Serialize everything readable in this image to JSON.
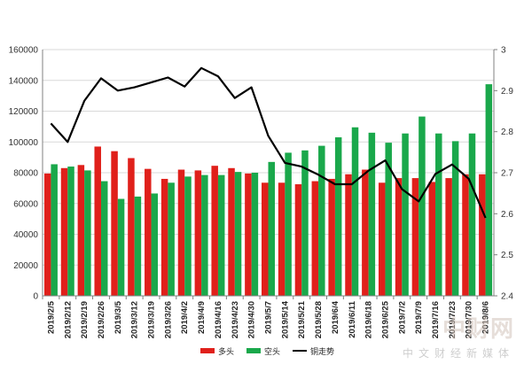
{
  "chart_data": {
    "type": "bar",
    "categories": [
      "2019/2/5",
      "2019/2/12",
      "2019/2/19",
      "2019/2/26",
      "2019/3/5",
      "2019/3/12",
      "2019/3/19",
      "2019/3/26",
      "2019/4/2",
      "2019/4/9",
      "2019/4/16",
      "2019/4/23",
      "2019/4/30",
      "2019/5/7",
      "2019/5/14",
      "2019/5/21",
      "2019/5/28",
      "2019/6/4",
      "2019/6/11",
      "2019/6/18",
      "2019/6/25",
      "2019/7/2",
      "2019/7/9",
      "2019/7/16",
      "2019/7/23",
      "2019/7/30",
      "2019/8/6"
    ],
    "series": [
      {
        "name": "多头",
        "kind": "bar",
        "axis": "left",
        "color": "#e0201b",
        "values": [
          79500,
          83000,
          85000,
          97000,
          94000,
          89500,
          82500,
          76000,
          82000,
          81500,
          84500,
          83000,
          79500,
          73500,
          73500,
          72500,
          74500,
          76000,
          79000,
          82000,
          73500,
          76500,
          76500,
          74000,
          76500,
          79000,
          79000
        ]
      },
      {
        "name": "空头",
        "kind": "bar",
        "axis": "left",
        "color": "#1aa84b",
        "values": [
          85500,
          84000,
          81500,
          74500,
          63000,
          64500,
          66500,
          73500,
          77500,
          78500,
          78500,
          80500,
          80000,
          87000,
          93000,
          94500,
          97500,
          103000,
          109500,
          106000,
          99500,
          105500,
          116500,
          105500,
          100500,
          105500,
          137500
        ]
      },
      {
        "name": "铜走势",
        "kind": "line",
        "axis": "right",
        "color": "#000000",
        "values": [
          2.82,
          2.775,
          2.875,
          2.93,
          2.9,
          2.908,
          2.92,
          2.932,
          2.91,
          2.955,
          2.935,
          2.882,
          2.908,
          2.79,
          2.724,
          2.715,
          2.695,
          2.672,
          2.672,
          2.705,
          2.73,
          2.66,
          2.63,
          2.697,
          2.72,
          2.685,
          2.59
        ]
      }
    ],
    "ylim_left": [
      0,
      160000
    ],
    "yticks_left": [
      "0",
      "20000",
      "40000",
      "60000",
      "80000",
      "100000",
      "120000",
      "140000",
      "160000"
    ],
    "ylim_right": [
      2.4,
      3.0
    ],
    "yticks_right": [
      "2.4",
      "2.5",
      "2.6",
      "2.7",
      "2.8",
      "2.9",
      "3"
    ],
    "grid": true,
    "legend_position": "bottom-center"
  },
  "watermark": {
    "logo_text": "中财网",
    "sub_text": "中文财经新媒体"
  },
  "colors": {
    "axis": "#808080",
    "grid": "#d9d9d9"
  }
}
